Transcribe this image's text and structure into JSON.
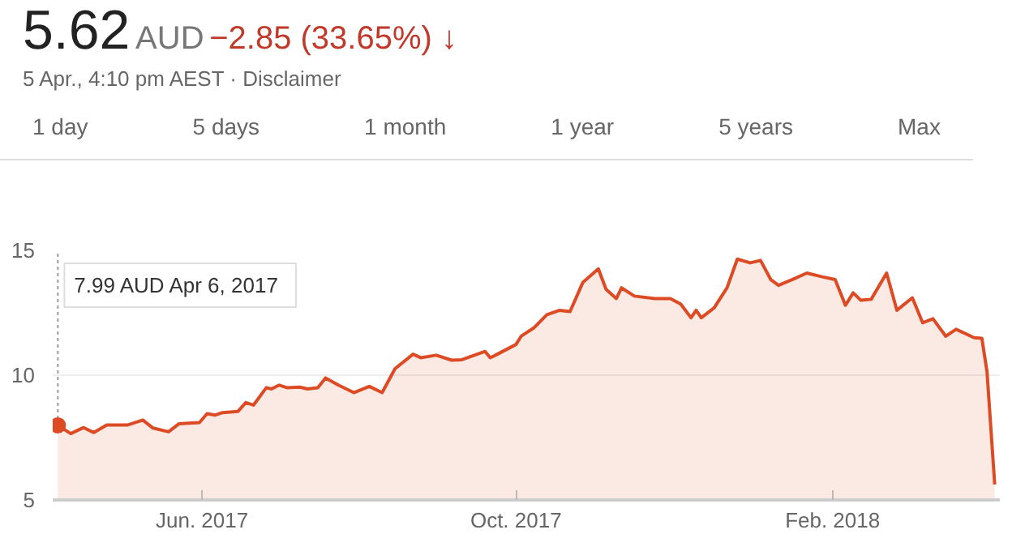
{
  "chart_data": {
    "type": "area",
    "title": "5.62",
    "annotations": [
      "AUD",
      "−2.85 (33.65%) ↓",
      "5 Apr., 4:10 pm AEST · Disclaimer",
      "1 day",
      "5 days",
      "1 month",
      "1 year",
      "5 years",
      "Max",
      "7.99 AUD  Apr 6, 2017"
    ],
    "ref_lines": [
      {
        "axis": "x",
        "value": "2017-04-06",
        "color": "#999999",
        "line_style": "dotted"
      }
    ],
    "x": [
      "2017-04-06",
      "2017-04-11",
      "2017-04-16",
      "2017-04-20",
      "2017-04-25",
      "2017-05-03",
      "2017-05-09",
      "2017-05-13",
      "2017-05-19",
      "2017-05-23",
      "2017-05-31",
      "2017-06-03",
      "2017-06-06",
      "2017-06-09",
      "2017-06-15",
      "2017-06-18",
      "2017-06-21",
      "2017-06-26",
      "2017-06-28",
      "2017-07-01",
      "2017-07-04",
      "2017-07-09",
      "2017-07-12",
      "2017-07-16",
      "2017-07-19",
      "2017-07-24",
      "2017-07-30",
      "2017-08-05",
      "2017-08-10",
      "2017-08-15",
      "2017-08-22",
      "2017-08-25",
      "2017-08-31",
      "2017-09-06",
      "2017-09-10",
      "2017-09-19",
      "2017-09-21",
      "2017-09-23",
      "2017-10-01",
      "2017-10-03",
      "2017-10-08",
      "2017-10-13",
      "2017-10-18",
      "2017-10-22",
      "2017-10-27",
      "2017-11-02",
      "2017-11-05",
      "2017-11-09",
      "2017-11-11",
      "2017-11-16",
      "2017-11-24",
      "2017-11-30",
      "2017-12-04",
      "2017-12-08",
      "2017-12-10",
      "2017-12-12",
      "2017-12-17",
      "2017-12-22",
      "2017-12-26",
      "2017-12-31",
      "2018-01-04",
      "2018-01-08",
      "2018-01-11",
      "2018-01-17",
      "2018-01-22",
      "2018-01-28",
      "2018-02-02",
      "2018-02-06",
      "2018-02-09",
      "2018-02-12",
      "2018-02-16",
      "2018-02-22",
      "2018-02-26",
      "2018-03-04",
      "2018-03-08",
      "2018-03-12",
      "2018-03-17",
      "2018-03-21",
      "2018-03-28",
      "2018-03-31",
      "2018-04-02",
      "2018-04-05"
    ],
    "series": [
      {
        "color": "#dd4b25",
        "values": [
          7.99,
          7.66,
          7.9,
          7.7,
          8.0,
          8.0,
          8.2,
          7.88,
          7.73,
          8.05,
          8.1,
          8.46,
          8.4,
          8.5,
          8.55,
          8.9,
          8.8,
          9.5,
          9.45,
          9.6,
          9.5,
          9.52,
          9.45,
          9.5,
          9.89,
          9.6,
          9.3,
          9.55,
          9.3,
          10.26,
          10.84,
          10.7,
          10.8,
          10.6,
          10.62,
          10.95,
          10.7,
          10.8,
          11.23,
          11.56,
          11.9,
          12.42,
          12.6,
          12.55,
          13.72,
          14.26,
          13.44,
          13.07,
          13.5,
          13.17,
          13.07,
          13.07,
          12.85,
          12.3,
          12.6,
          12.3,
          12.7,
          13.5,
          14.65,
          14.5,
          14.6,
          13.83,
          13.6,
          13.86,
          14.09,
          13.94,
          13.83,
          12.8,
          13.3,
          13.0,
          13.04,
          14.09,
          12.6,
          13.1,
          12.1,
          12.26,
          11.56,
          11.84,
          11.5,
          11.48,
          10.15,
          5.62
        ]
      }
    ],
    "xlim": [
      "2017-04-04",
      "2018-04-07"
    ],
    "ylim": [
      5,
      15
    ],
    "xticks": [
      {
        "value": "2017-06-01",
        "label": "Jun. 2017"
      },
      {
        "value": "2017-10-01",
        "label": "Oct. 2017"
      },
      {
        "value": "2018-02-01",
        "label": "Feb. 2018"
      }
    ],
    "yticks": [
      5,
      10,
      15
    ],
    "grid": "y"
  }
}
